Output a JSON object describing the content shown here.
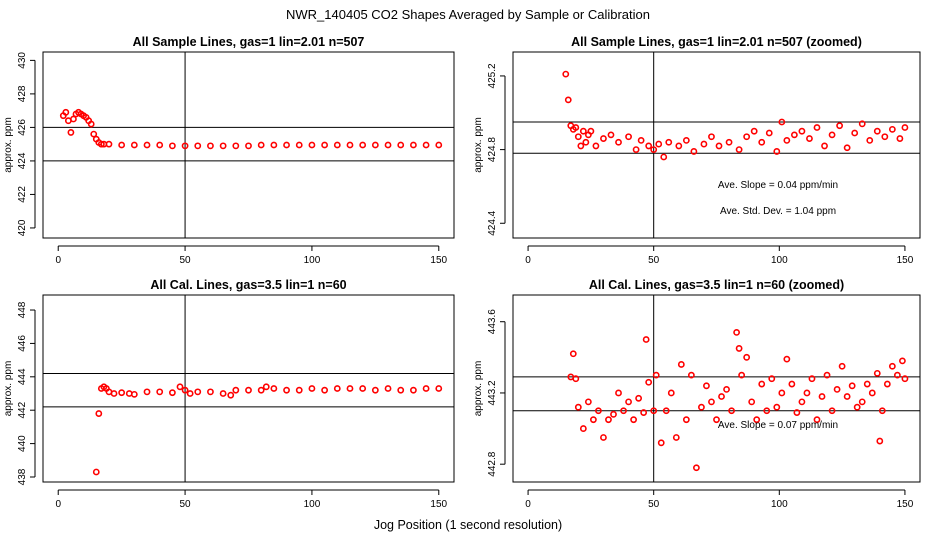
{
  "figure": {
    "title": "NWR_140405  CO2 Shapes Averaged by Sample or Calibration",
    "xlabel": "Jog Position (1 second resolution)"
  },
  "chart_data": [
    {
      "type": "scatter",
      "title": "All Sample Lines, gas=1 lin=2.01 n=507",
      "xlabel": "",
      "ylabel": "approx. ppm",
      "xlim": [
        -6,
        156
      ],
      "ylim": [
        419.4,
        430.5
      ],
      "xticks": [
        0,
        50,
        100,
        150
      ],
      "yticks": [
        420,
        422,
        424,
        426,
        428,
        430
      ],
      "vline": 50,
      "hlines": [
        426.0,
        424.0
      ],
      "grid": false,
      "point_color": "#ff0000",
      "series": [
        {
          "x": [
            2,
            3,
            4,
            5,
            6,
            7,
            8,
            9,
            10,
            11,
            12,
            13,
            14,
            15,
            16,
            17,
            18,
            20,
            25,
            30,
            35,
            40,
            45,
            50,
            55,
            60,
            65,
            70,
            75,
            80,
            85,
            90,
            95,
            100,
            105,
            110,
            115,
            120,
            125,
            130,
            135,
            140,
            145,
            150
          ],
          "y": [
            426.7,
            426.9,
            426.4,
            425.7,
            426.5,
            426.8,
            426.9,
            426.8,
            426.7,
            426.6,
            426.4,
            426.2,
            425.6,
            425.3,
            425.1,
            425.0,
            425.0,
            425.0,
            424.95,
            424.95,
            424.95,
            424.95,
            424.9,
            424.9,
            424.9,
            424.9,
            424.9,
            424.9,
            424.9,
            424.95,
            424.95,
            424.95,
            424.95,
            424.95,
            424.95,
            424.95,
            424.95,
            424.95,
            424.95,
            424.95,
            424.95,
            424.95,
            424.95,
            424.95
          ]
        }
      ],
      "annotations": []
    },
    {
      "type": "scatter",
      "title": "All Sample Lines, gas=1 lin=2.01 n=507 (zoomed)",
      "xlabel": "",
      "ylabel": "approx. ppm",
      "xlim": [
        -6,
        156
      ],
      "ylim": [
        424.32,
        425.33
      ],
      "xticks": [
        0,
        50,
        100,
        150
      ],
      "yticks": [
        424.4,
        424.8,
        425.2
      ],
      "vline": 50,
      "hlines": [
        424.95,
        424.78
      ],
      "grid": false,
      "point_color": "#ff0000",
      "series": [
        {
          "x": [
            15,
            16,
            17,
            18,
            19,
            20,
            21,
            22,
            23,
            24,
            25,
            27,
            30,
            33,
            36,
            40,
            43,
            45,
            48,
            50,
            52,
            54,
            56,
            60,
            63,
            66,
            70,
            73,
            76,
            80,
            84,
            87,
            90,
            93,
            96,
            99,
            101,
            103,
            106,
            109,
            112,
            115,
            118,
            121,
            124,
            127,
            130,
            133,
            136,
            139,
            142,
            145,
            148,
            150
          ],
          "y": [
            425.21,
            425.07,
            424.93,
            424.91,
            424.92,
            424.87,
            424.82,
            424.9,
            424.84,
            424.88,
            424.9,
            424.82,
            424.86,
            424.88,
            424.84,
            424.87,
            424.8,
            424.85,
            424.82,
            424.8,
            424.83,
            424.76,
            424.84,
            424.82,
            424.85,
            424.79,
            424.83,
            424.87,
            424.82,
            424.84,
            424.8,
            424.87,
            424.9,
            424.84,
            424.89,
            424.79,
            424.95,
            424.85,
            424.88,
            424.9,
            424.86,
            424.92,
            424.82,
            424.88,
            424.93,
            424.81,
            424.89,
            424.94,
            424.85,
            424.9,
            424.87,
            424.91,
            424.86,
            424.92
          ]
        }
      ],
      "annotations": [
        "Ave. Slope =  0.04  ppm/min",
        "Ave. Std. Dev. =  1.04  ppm"
      ]
    },
    {
      "type": "scatter",
      "title": "All Cal. Lines, gas=3.5 lin=1 n=60",
      "xlabel": "",
      "ylabel": "approx. ppm",
      "xlim": [
        -6,
        156
      ],
      "ylim": [
        437.7,
        448.9
      ],
      "xticks": [
        0,
        50,
        100,
        150
      ],
      "yticks": [
        438,
        440,
        442,
        444,
        446,
        448
      ],
      "vline": 50,
      "hlines": [
        444.2,
        442.2
      ],
      "grid": false,
      "point_color": "#ff0000",
      "series": [
        {
          "x": [
            15,
            16,
            17,
            18,
            19,
            20,
            22,
            25,
            28,
            30,
            35,
            40,
            45,
            48,
            50,
            52,
            55,
            60,
            65,
            68,
            70,
            75,
            80,
            82,
            85,
            90,
            95,
            100,
            105,
            110,
            115,
            120,
            125,
            130,
            135,
            140,
            145,
            150
          ],
          "y": [
            438.3,
            441.8,
            443.3,
            443.4,
            443.3,
            443.1,
            443.0,
            443.05,
            443.0,
            442.95,
            443.1,
            443.1,
            443.05,
            443.4,
            443.2,
            443.0,
            443.1,
            443.1,
            443.0,
            442.9,
            443.2,
            443.2,
            443.2,
            443.4,
            443.3,
            443.2,
            443.2,
            443.3,
            443.2,
            443.3,
            443.3,
            443.3,
            443.2,
            443.3,
            443.2,
            443.2,
            443.3,
            443.3
          ]
        }
      ],
      "annotations": []
    },
    {
      "type": "scatter",
      "title": "All Cal. Lines, gas=3.5 lin=1 n=60 (zoomed)",
      "xlabel": "",
      "ylabel": "approx. ppm",
      "xlim": [
        -6,
        156
      ],
      "ylim": [
        442.7,
        443.75
      ],
      "xticks": [
        0,
        50,
        100,
        150
      ],
      "yticks": [
        442.8,
        443.2,
        443.6
      ],
      "vline": 50,
      "hlines": [
        443.29,
        443.1
      ],
      "grid": false,
      "point_color": "#ff0000",
      "series": [
        {
          "x": [
            17,
            18,
            19,
            20,
            22,
            24,
            26,
            28,
            30,
            32,
            34,
            36,
            38,
            40,
            42,
            44,
            46,
            47,
            48,
            50,
            51,
            53,
            55,
            57,
            59,
            61,
            63,
            65,
            67,
            69,
            71,
            73,
            75,
            77,
            79,
            81,
            83,
            84,
            85,
            87,
            89,
            91,
            93,
            95,
            97,
            99,
            101,
            103,
            105,
            107,
            109,
            111,
            113,
            115,
            117,
            119,
            121,
            123,
            125,
            127,
            129,
            131,
            133,
            135,
            137,
            139,
            140,
            141,
            143,
            145,
            147,
            149,
            150
          ],
          "y": [
            443.29,
            443.42,
            443.28,
            443.12,
            443.0,
            443.15,
            443.05,
            443.1,
            442.95,
            443.05,
            443.08,
            443.2,
            443.1,
            443.15,
            443.05,
            443.17,
            443.09,
            443.5,
            443.26,
            443.1,
            443.3,
            442.92,
            443.1,
            443.2,
            442.95,
            443.36,
            443.05,
            443.3,
            442.78,
            443.12,
            443.24,
            443.15,
            443.05,
            443.18,
            443.22,
            443.1,
            443.54,
            443.45,
            443.3,
            443.4,
            443.15,
            443.05,
            443.25,
            443.1,
            443.28,
            443.12,
            443.2,
            443.39,
            443.25,
            443.09,
            443.15,
            443.2,
            443.28,
            443.05,
            443.18,
            443.3,
            443.1,
            443.22,
            443.35,
            443.18,
            443.24,
            443.12,
            443.15,
            443.25,
            443.2,
            443.31,
            442.93,
            443.1,
            443.25,
            443.35,
            443.3,
            443.38,
            443.28
          ]
        }
      ],
      "annotations": [
        "Ave. Slope =  0.07  ppm/min"
      ]
    }
  ]
}
